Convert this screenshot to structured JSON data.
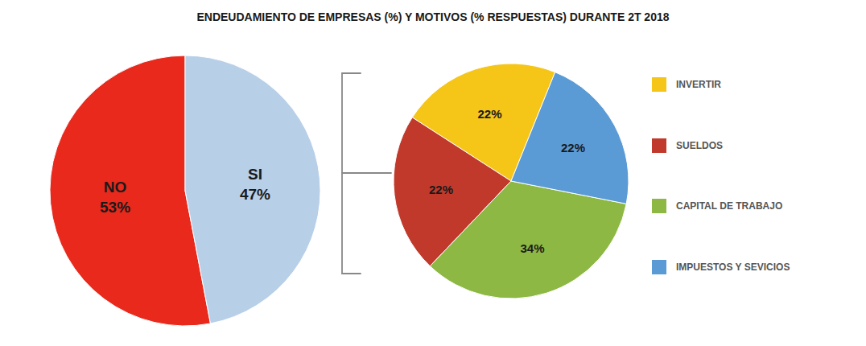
{
  "chart_data": [
    {
      "type": "pie",
      "title": "ENDEUDAMIENTO DE EMPRESAS (%) Y MOTIVOS (% RESPUESTAS) DURANTE 2T 2018",
      "categories": [
        "NO",
        "SI"
      ],
      "values": [
        53,
        47
      ],
      "value_labels": [
        "53%",
        "47%"
      ],
      "colors": [
        "#e8291c",
        "#b8cfe8"
      ],
      "data_labels": true
    },
    {
      "type": "pie",
      "categories": [
        "INVERTIR",
        "SUELDOS",
        "CAPITAL DE TRABAJO",
        "IMPUESTOS Y SEVICIOS"
      ],
      "values": [
        22,
        22,
        34,
        22
      ],
      "value_labels": [
        "22%",
        "22%",
        "34%",
        "22%"
      ],
      "colors": [
        "#f5c518",
        "#c0392b",
        "#8db843",
        "#5b9bd5"
      ],
      "data_labels": true,
      "legend": "right"
    }
  ]
}
